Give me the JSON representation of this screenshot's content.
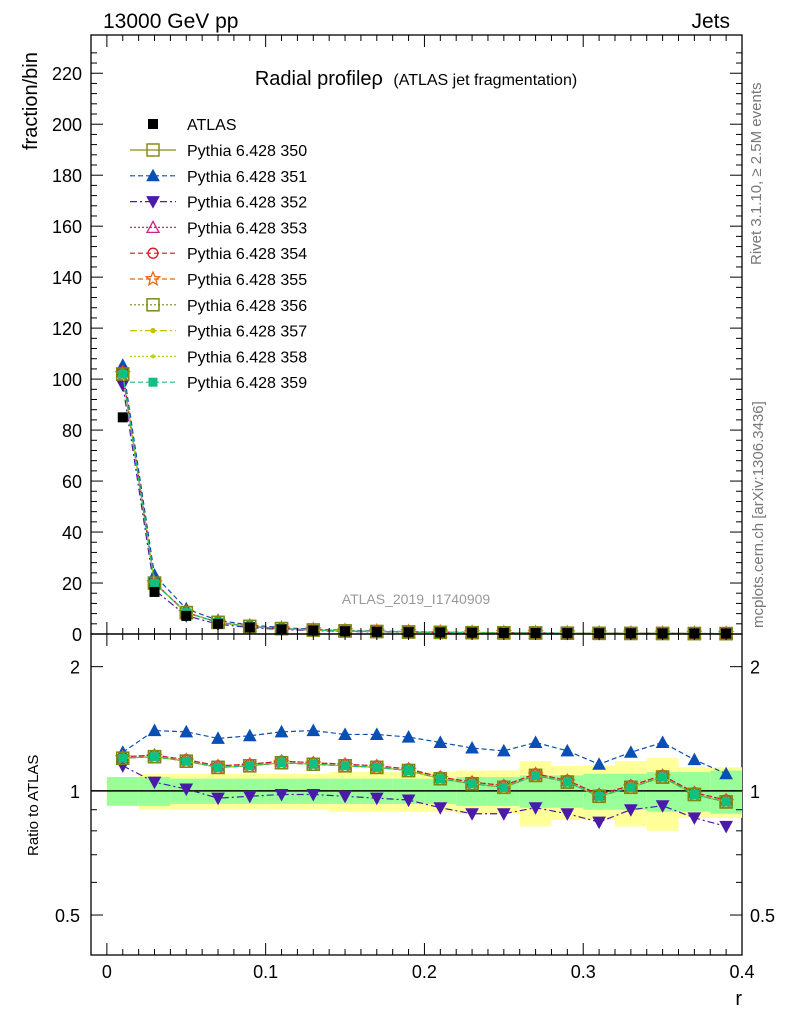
{
  "header": {
    "left": "13000 GeV pp",
    "right": "Jets"
  },
  "side_labels": {
    "rivet": "Rivet 3.1.10, ≥ 2.5M events",
    "mcplots": "mcplots.cern.ch [arXiv:1306.3436]"
  },
  "colors": {
    "data": "#000000",
    "s350": "#8c8c1a",
    "s351": "#0a4fb4",
    "s352": "#4a1aa8",
    "s353": "#cc2288",
    "s354": "#dd1122",
    "s355": "#ee6611",
    "s356": "#7a8a10",
    "s357": "#c8c000",
    "s358": "#b8d020",
    "s359": "#10c080",
    "band_inner": "#99ff99",
    "band_outer": "#ffff99"
  },
  "chart_data": {
    "type": "line",
    "title": "Radial profileρ",
    "subtitle": "(ATLAS jet fragmentation)",
    "watermark": "ATLAS_2019_I1740909",
    "xlabel": "r",
    "ylabel_main": "fraction/bin",
    "ylabel_ratio": "Ratio to ATLAS",
    "xlim": [
      -0.01,
      0.4
    ],
    "ylim_main": [
      0,
      235
    ],
    "ylim_ratio": [
      0.4,
      2.4
    ],
    "ratio_log_scale": true,
    "x_ticks": [
      "0",
      "0.1",
      "0.2",
      "0.3",
      "0.4"
    ],
    "y_ticks_main": [
      "0",
      "20",
      "40",
      "60",
      "80",
      "100",
      "120",
      "140",
      "160",
      "180",
      "200",
      "220"
    ],
    "y_ticks_ratio": [
      "0.5",
      "1",
      "2"
    ],
    "legend_position": "top-left",
    "x": [
      0.01,
      0.03,
      0.05,
      0.07,
      0.09,
      0.11,
      0.13,
      0.15,
      0.17,
      0.19,
      0.21,
      0.23,
      0.25,
      0.27,
      0.29,
      0.31,
      0.33,
      0.35,
      0.37,
      0.39
    ],
    "data": {
      "name": "ATLAS",
      "values": [
        85.0,
        16.5,
        7.1,
        4.0,
        2.6,
        1.8,
        1.35,
        1.05,
        0.85,
        0.7,
        0.6,
        0.5,
        0.42,
        0.36,
        0.31,
        0.27,
        0.23,
        0.2,
        0.18,
        0.16
      ]
    },
    "band_inner": [
      0.08,
      0.08,
      0.07,
      0.07,
      0.07,
      0.07,
      0.07,
      0.07,
      0.07,
      0.07,
      0.07,
      0.08,
      0.08,
      0.09,
      0.09,
      0.1,
      0.1,
      0.11,
      0.11,
      0.12
    ],
    "band_outer": [
      0.08,
      0.1,
      0.1,
      0.1,
      0.1,
      0.1,
      0.1,
      0.11,
      0.11,
      0.11,
      0.11,
      0.12,
      0.12,
      0.18,
      0.15,
      0.15,
      0.18,
      0.2,
      0.14,
      0.14
    ],
    "series": [
      {
        "name": "Pythia 6.428 350",
        "color_key": "s350",
        "marker": "square-open",
        "dash": "",
        "ratio": [
          1.2,
          1.21,
          1.18,
          1.14,
          1.15,
          1.17,
          1.16,
          1.15,
          1.14,
          1.12,
          1.07,
          1.04,
          1.02,
          1.09,
          1.05,
          0.97,
          1.02,
          1.08,
          0.98,
          0.94
        ]
      },
      {
        "name": "Pythia 6.428 351",
        "color_key": "s351",
        "marker": "triangle-up",
        "dash": "5,3",
        "ratio": [
          1.24,
          1.4,
          1.39,
          1.34,
          1.36,
          1.39,
          1.4,
          1.37,
          1.37,
          1.35,
          1.31,
          1.27,
          1.25,
          1.31,
          1.25,
          1.16,
          1.24,
          1.31,
          1.19,
          1.1
        ]
      },
      {
        "name": "Pythia 6.428 352",
        "color_key": "s352",
        "marker": "triangle-down",
        "dash": "7,3,2,3",
        "ratio": [
          1.15,
          1.05,
          1.01,
          0.96,
          0.97,
          0.98,
          0.98,
          0.97,
          0.96,
          0.95,
          0.91,
          0.88,
          0.88,
          0.91,
          0.88,
          0.84,
          0.9,
          0.92,
          0.86,
          0.82
        ]
      },
      {
        "name": "Pythia 6.428 353",
        "color_key": "s353",
        "marker": "triangle-up-open",
        "dash": "2,2",
        "ratio": [
          1.21,
          1.22,
          1.19,
          1.15,
          1.16,
          1.18,
          1.17,
          1.16,
          1.15,
          1.13,
          1.08,
          1.05,
          1.03,
          1.1,
          1.06,
          0.98,
          1.03,
          1.09,
          0.99,
          0.95
        ]
      },
      {
        "name": "Pythia 6.428 354",
        "color_key": "s354",
        "marker": "circle-open",
        "dash": "5,3",
        "ratio": [
          1.21,
          1.22,
          1.19,
          1.15,
          1.16,
          1.18,
          1.17,
          1.16,
          1.15,
          1.13,
          1.08,
          1.05,
          1.03,
          1.1,
          1.06,
          0.98,
          1.03,
          1.09,
          0.99,
          0.95
        ]
      },
      {
        "name": "Pythia 6.428 355",
        "color_key": "s355",
        "marker": "star-open",
        "dash": "5,3",
        "ratio": [
          1.2,
          1.21,
          1.18,
          1.14,
          1.15,
          1.17,
          1.16,
          1.15,
          1.14,
          1.12,
          1.07,
          1.04,
          1.02,
          1.09,
          1.05,
          0.97,
          1.02,
          1.08,
          0.98,
          0.94
        ]
      },
      {
        "name": "Pythia 6.428 356",
        "color_key": "s356",
        "marker": "square-open",
        "dash": "2,2",
        "ratio": [
          1.2,
          1.21,
          1.18,
          1.14,
          1.15,
          1.17,
          1.16,
          1.15,
          1.14,
          1.12,
          1.07,
          1.04,
          1.02,
          1.09,
          1.05,
          0.97,
          1.02,
          1.08,
          0.98,
          0.94
        ]
      },
      {
        "name": "Pythia 6.428 357",
        "color_key": "s357",
        "marker": "dot",
        "dash": "7,3,2,3",
        "ratio": [
          1.2,
          1.21,
          1.18,
          1.14,
          1.15,
          1.17,
          1.16,
          1.15,
          1.14,
          1.12,
          1.07,
          1.04,
          1.02,
          1.09,
          1.05,
          0.97,
          1.02,
          1.08,
          0.98,
          0.94
        ]
      },
      {
        "name": "Pythia 6.428 358",
        "color_key": "s358",
        "marker": "dot-small",
        "dash": "2,2",
        "ratio": [
          1.2,
          1.21,
          1.18,
          1.14,
          1.15,
          1.17,
          1.16,
          1.15,
          1.14,
          1.12,
          1.07,
          1.04,
          1.02,
          1.09,
          1.05,
          0.97,
          1.02,
          1.08,
          0.98,
          0.94
        ]
      },
      {
        "name": "Pythia 6.428 359",
        "color_key": "s359",
        "marker": "square",
        "dash": "5,3",
        "ratio": [
          1.2,
          1.21,
          1.18,
          1.14,
          1.15,
          1.17,
          1.16,
          1.15,
          1.14,
          1.12,
          1.07,
          1.04,
          1.02,
          1.09,
          1.05,
          0.97,
          1.02,
          1.08,
          0.98,
          0.94
        ]
      }
    ]
  }
}
